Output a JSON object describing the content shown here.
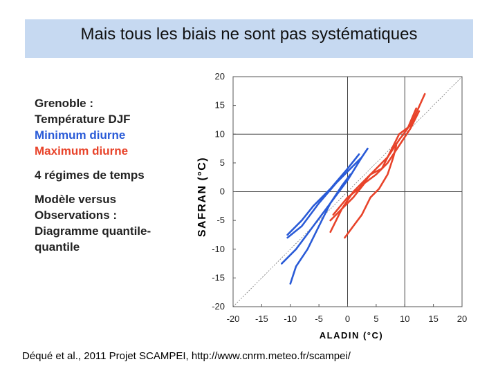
{
  "slide": {
    "title": "Mais tous les biais ne sont pas systématiques",
    "citation": "Déqué et al., 2011 Projet SCAMPEI, http://www.cnrm.meteo.fr/scampei/",
    "legend_text": {
      "line1": "Grenoble :",
      "line2": "Température DJF",
      "line3": "Minimum diurne",
      "line4": "Maximum diurne",
      "line5": "4 régimes de temps",
      "line6": "Modèle versus",
      "line7": "Observations :",
      "line8": "Diagramme quantile-",
      "line9": "quantile"
    }
  },
  "colors": {
    "title_bg": "#c6d9f1",
    "blue": "#2a5bd7",
    "red": "#e8432a"
  },
  "chart_data": {
    "type": "line",
    "xlabel": "ALADIN (°C)",
    "ylabel": "SAFRAN (°C)",
    "xlim": [
      -20,
      20
    ],
    "ylim": [
      -20,
      20
    ],
    "xticks": [
      -20,
      -15,
      -10,
      -5,
      0,
      5,
      10,
      15,
      20
    ],
    "yticks": [
      -20,
      -15,
      -10,
      -5,
      0,
      5,
      10,
      15,
      20
    ],
    "grid_lines": [
      0,
      10
    ],
    "diagonal": "y=x dotted",
    "series": [
      {
        "group": "minimum",
        "color": "#2a5bd7",
        "x": [
          -11.5,
          -9,
          -6,
          -3,
          0,
          2.5,
          3.5
        ],
        "y": [
          -12.5,
          -10,
          -6,
          -2,
          2,
          6,
          7.5
        ]
      },
      {
        "group": "minimum",
        "color": "#2a5bd7",
        "x": [
          -10.5,
          -8,
          -5,
          -2,
          0.5,
          2.5
        ],
        "y": [
          -8,
          -6,
          -2,
          1.5,
          4,
          6
        ]
      },
      {
        "group": "minimum",
        "color": "#2a5bd7",
        "x": [
          -10.5,
          -8,
          -6,
          -3,
          0,
          2
        ],
        "y": [
          -7.5,
          -5,
          -2.5,
          0.5,
          4,
          6.5
        ]
      },
      {
        "group": "minimum",
        "color": "#2a5bd7",
        "x": [
          -10,
          -9,
          -7,
          -5,
          -3,
          -1,
          0.5
        ],
        "y": [
          -16,
          -13,
          -10,
          -6,
          -2,
          1,
          3
        ]
      },
      {
        "group": "maximum",
        "color": "#e8432a",
        "x": [
          -3,
          -1,
          1,
          3,
          5,
          7,
          9,
          11,
          12.5
        ],
        "y": [
          -5,
          -3,
          -1,
          1.5,
          3,
          5,
          8,
          11,
          14
        ]
      },
      {
        "group": "maximum",
        "color": "#e8432a",
        "x": [
          -3,
          -1,
          1,
          3,
          5,
          7,
          9,
          10.5,
          12
        ],
        "y": [
          -7,
          -3,
          0,
          2,
          4,
          6,
          9,
          11,
          14.5
        ]
      },
      {
        "group": "maximum",
        "color": "#e8432a",
        "x": [
          -2.5,
          0,
          2,
          4,
          6,
          7.5,
          9,
          11,
          13.5
        ],
        "y": [
          -4,
          -1,
          0.5,
          3,
          4,
          7,
          10,
          11.5,
          17
        ]
      },
      {
        "group": "maximum",
        "color": "#e8432a",
        "x": [
          -0.5,
          1,
          2.5,
          4,
          5.5,
          7,
          8,
          8.5
        ],
        "y": [
          -8,
          -6,
          -4,
          -1,
          0.5,
          3,
          6,
          8
        ]
      }
    ]
  }
}
